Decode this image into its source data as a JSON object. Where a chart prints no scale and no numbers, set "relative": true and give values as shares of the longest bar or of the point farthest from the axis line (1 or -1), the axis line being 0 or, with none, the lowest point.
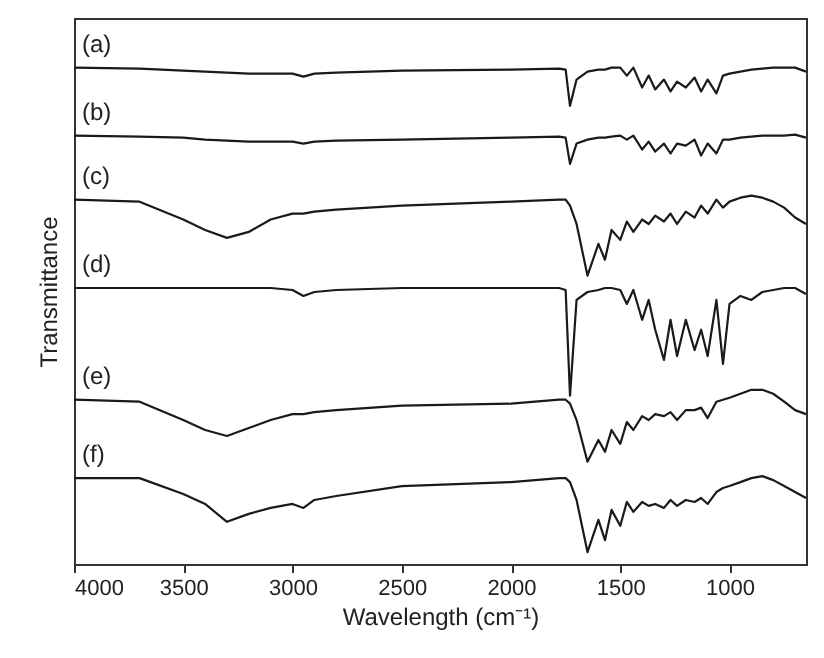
{
  "chart_data": {
    "type": "line",
    "relative": true,
    "xlabel": "Wavelength (cm⁻¹)",
    "ylabel": "Transmittance",
    "xlim": [
      4000,
      650
    ],
    "xticks": [
      4000,
      3500,
      3000,
      2500,
      2000,
      1500,
      1000
    ],
    "x": [
      4000,
      3700,
      3500,
      3400,
      3300,
      3200,
      3100,
      3000,
      2950,
      2900,
      2800,
      2500,
      2000,
      1780,
      1750,
      1730,
      1700,
      1650,
      1600,
      1570,
      1540,
      1500,
      1470,
      1440,
      1400,
      1370,
      1340,
      1300,
      1270,
      1240,
      1200,
      1160,
      1130,
      1100,
      1060,
      1030,
      1000,
      950,
      900,
      850,
      800,
      750,
      700,
      650
    ],
    "grid": false,
    "marker": "none",
    "line_style": "solid",
    "series": [
      {
        "name": "(a)",
        "color": "#1a1a1a",
        "values": [
          1.0,
          0.998,
          0.994,
          0.992,
          0.99,
          0.988,
          0.988,
          0.988,
          0.982,
          0.988,
          0.99,
          0.994,
          0.996,
          0.998,
          0.996,
          0.923,
          0.976,
          0.992,
          0.996,
          0.996,
          1.0,
          1.0,
          0.984,
          1.0,
          0.96,
          0.984,
          0.956,
          0.976,
          0.952,
          0.972,
          0.96,
          0.98,
          0.952,
          0.976,
          0.948,
          0.984,
          0.988,
          0.992,
          0.996,
          0.998,
          1.0,
          1.0,
          1.0,
          0.992
        ]
      },
      {
        "name": "(b)",
        "color": "#1a1a1a",
        "values": [
          0.863,
          0.861,
          0.859,
          0.855,
          0.853,
          0.851,
          0.851,
          0.851,
          0.847,
          0.851,
          0.853,
          0.855,
          0.859,
          0.861,
          0.859,
          0.806,
          0.847,
          0.855,
          0.859,
          0.859,
          0.861,
          0.863,
          0.855,
          0.863,
          0.835,
          0.851,
          0.831,
          0.847,
          0.827,
          0.847,
          0.843,
          0.855,
          0.823,
          0.847,
          0.827,
          0.855,
          0.855,
          0.859,
          0.861,
          0.863,
          0.863,
          0.863,
          0.865,
          0.859
        ]
      },
      {
        "name": "(c)",
        "color": "#1a1a1a",
        "values": [
          0.734,
          0.73,
          0.694,
          0.673,
          0.657,
          0.669,
          0.694,
          0.706,
          0.706,
          0.71,
          0.714,
          0.722,
          0.73,
          0.734,
          0.734,
          0.722,
          0.685,
          0.581,
          0.645,
          0.613,
          0.673,
          0.653,
          0.69,
          0.669,
          0.694,
          0.685,
          0.702,
          0.69,
          0.706,
          0.685,
          0.71,
          0.698,
          0.722,
          0.706,
          0.734,
          0.718,
          0.73,
          0.738,
          0.742,
          0.738,
          0.73,
          0.718,
          0.698,
          0.685
        ]
      },
      {
        "name": "(d)",
        "color": "#1a1a1a",
        "values": [
          0.556,
          0.556,
          0.556,
          0.556,
          0.556,
          0.556,
          0.556,
          0.552,
          0.54,
          0.548,
          0.552,
          0.556,
          0.556,
          0.556,
          0.552,
          0.339,
          0.532,
          0.548,
          0.552,
          0.556,
          0.556,
          0.552,
          0.524,
          0.552,
          0.492,
          0.532,
          0.472,
          0.411,
          0.492,
          0.419,
          0.492,
          0.431,
          0.472,
          0.419,
          0.532,
          0.403,
          0.524,
          0.54,
          0.532,
          0.548,
          0.552,
          0.556,
          0.556,
          0.544
        ]
      },
      {
        "name": "(e)",
        "color": "#1a1a1a",
        "values": [
          0.331,
          0.327,
          0.29,
          0.27,
          0.258,
          0.274,
          0.29,
          0.302,
          0.302,
          0.306,
          0.31,
          0.319,
          0.323,
          0.331,
          0.331,
          0.323,
          0.29,
          0.206,
          0.25,
          0.226,
          0.27,
          0.242,
          0.286,
          0.27,
          0.298,
          0.29,
          0.302,
          0.298,
          0.306,
          0.29,
          0.31,
          0.31,
          0.315,
          0.294,
          0.327,
          0.331,
          0.335,
          0.343,
          0.351,
          0.351,
          0.343,
          0.327,
          0.31,
          0.302
        ]
      },
      {
        "name": "(f)",
        "color": "#1a1a1a",
        "values": [
          0.173,
          0.173,
          0.141,
          0.121,
          0.085,
          0.101,
          0.113,
          0.121,
          0.113,
          0.129,
          0.137,
          0.157,
          0.165,
          0.173,
          0.173,
          0.165,
          0.129,
          0.024,
          0.089,
          0.048,
          0.109,
          0.077,
          0.125,
          0.105,
          0.125,
          0.117,
          0.121,
          0.113,
          0.129,
          0.117,
          0.129,
          0.125,
          0.133,
          0.121,
          0.145,
          0.153,
          0.157,
          0.165,
          0.173,
          0.177,
          0.169,
          0.157,
          0.145,
          0.133
        ]
      }
    ]
  }
}
